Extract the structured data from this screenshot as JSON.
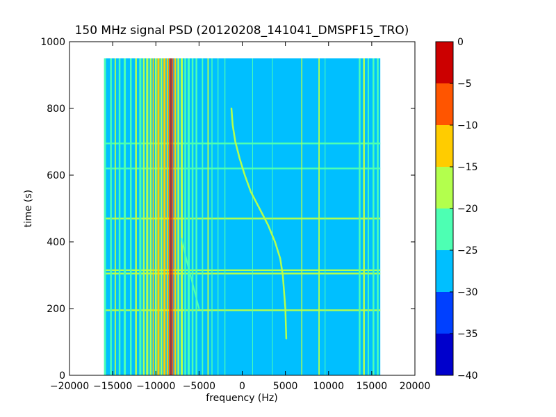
{
  "chart_data": {
    "type": "heatmap",
    "title": "150 MHz signal PSD (20120208_141041_DMSPF15_TRO)",
    "xlabel": "frequency (Hz)",
    "ylabel": "time (s)",
    "xlim": [
      -20000,
      20000
    ],
    "ylim": [
      0,
      1000
    ],
    "x_ticks": [
      {
        "value": -20000,
        "label": "−20000"
      },
      {
        "value": -15000,
        "label": "−15000"
      },
      {
        "value": -10000,
        "label": "−10000"
      },
      {
        "value": -5000,
        "label": "−5000"
      },
      {
        "value": 0,
        "label": "0"
      },
      {
        "value": 5000,
        "label": "5000"
      },
      {
        "value": 10000,
        "label": "10000"
      },
      {
        "value": 15000,
        "label": "15000"
      },
      {
        "value": 20000,
        "label": "20000"
      }
    ],
    "y_ticks": [
      {
        "value": 0,
        "label": "0"
      },
      {
        "value": 200,
        "label": "200"
      },
      {
        "value": 400,
        "label": "400"
      },
      {
        "value": 600,
        "label": "600"
      },
      {
        "value": 800,
        "label": "800"
      },
      {
        "value": 1000,
        "label": "1000"
      }
    ],
    "data_extent": {
      "freq": [
        -16000,
        16000
      ],
      "time": [
        0,
        950
      ]
    },
    "background_level": -27.5,
    "colorbar": {
      "min": -40,
      "max": 0,
      "levels": [
        {
          "from": -40,
          "to": -35,
          "color": "#0000cc"
        },
        {
          "from": -35,
          "to": -30,
          "color": "#0040ff"
        },
        {
          "from": -30,
          "to": -25,
          "color": "#00bfff"
        },
        {
          "from": -25,
          "to": -20,
          "color": "#4dffb3"
        },
        {
          "from": -20,
          "to": -15,
          "color": "#b3ff4d"
        },
        {
          "from": -15,
          "to": -10,
          "color": "#ffcc00"
        },
        {
          "from": -10,
          "to": -5,
          "color": "#ff5500"
        },
        {
          "from": -5,
          "to": 0,
          "color": "#cc0000"
        }
      ],
      "ticks": [
        {
          "value": 0,
          "label": "0"
        },
        {
          "value": -5,
          "label": "−5"
        },
        {
          "value": -10,
          "label": "−10"
        },
        {
          "value": -15,
          "label": "−15"
        },
        {
          "value": -20,
          "label": "−20"
        },
        {
          "value": -25,
          "label": "−25"
        },
        {
          "value": -30,
          "label": "−30"
        },
        {
          "value": -35,
          "label": "−35"
        },
        {
          "value": -40,
          "label": "−40"
        }
      ]
    },
    "vertical_bands": [
      {
        "freq": -15900,
        "width": 250,
        "level": -22.5
      },
      {
        "freq": -15200,
        "width": 200,
        "level": -22.5
      },
      {
        "freq": -14700,
        "width": 150,
        "level": -17.5
      },
      {
        "freq": -14200,
        "width": 200,
        "level": -22.5
      },
      {
        "freq": -13600,
        "width": 250,
        "level": -22.5
      },
      {
        "freq": -12900,
        "width": 200,
        "level": -22.5
      },
      {
        "freq": -12300,
        "width": 200,
        "level": -17.5
      },
      {
        "freq": -11800,
        "width": 250,
        "level": -22.5
      },
      {
        "freq": -11400,
        "width": 200,
        "level": -17.5
      },
      {
        "freq": -11000,
        "width": 250,
        "level": -17.5
      },
      {
        "freq": -10600,
        "width": 200,
        "level": -17.5
      },
      {
        "freq": -10300,
        "width": 150,
        "level": -12.5
      },
      {
        "freq": -10000,
        "width": 200,
        "level": -17.5
      },
      {
        "freq": -9700,
        "width": 250,
        "level": -12.5
      },
      {
        "freq": -9350,
        "width": 200,
        "level": -17.5
      },
      {
        "freq": -9000,
        "width": 250,
        "level": -12.5
      },
      {
        "freq": -8650,
        "width": 200,
        "level": -12.5
      },
      {
        "freq": -8420,
        "width": 150,
        "level": -7.5
      },
      {
        "freq": -8250,
        "width": 120,
        "level": -2.5
      },
      {
        "freq": -8050,
        "width": 150,
        "level": -7.5
      },
      {
        "freq": -7750,
        "width": 200,
        "level": -12.5
      },
      {
        "freq": -7400,
        "width": 200,
        "level": -17.5
      },
      {
        "freq": -7000,
        "width": 250,
        "level": -17.5
      },
      {
        "freq": -6600,
        "width": 200,
        "level": -22.5
      },
      {
        "freq": -6200,
        "width": 250,
        "level": -22.5
      },
      {
        "freq": -5750,
        "width": 200,
        "level": -22.5
      },
      {
        "freq": -5300,
        "width": 200,
        "level": -22.5
      },
      {
        "freq": -4600,
        "width": 150,
        "level": -22.5
      },
      {
        "freq": -3950,
        "width": 150,
        "level": -17.5
      },
      {
        "freq": -3500,
        "width": 120,
        "level": -22.5
      },
      {
        "freq": -2800,
        "width": 100,
        "level": -22.5
      },
      {
        "freq": -2000,
        "width": 100,
        "level": -22.5
      },
      {
        "freq": 1200,
        "width": 80,
        "level": -22.5
      },
      {
        "freq": 3500,
        "width": 80,
        "level": -22.5
      },
      {
        "freq": 6900,
        "width": 120,
        "level": -17.5
      },
      {
        "freq": 8900,
        "width": 150,
        "level": -17.5
      },
      {
        "freq": 9600,
        "width": 80,
        "level": -22.5
      },
      {
        "freq": 13600,
        "width": 200,
        "level": -22.5
      },
      {
        "freq": 14100,
        "width": 200,
        "level": -17.5
      },
      {
        "freq": 14600,
        "width": 150,
        "level": -22.5
      },
      {
        "freq": 15200,
        "width": 200,
        "level": -22.5
      },
      {
        "freq": 15700,
        "width": 200,
        "level": -22.5
      }
    ],
    "horizontal_lines": [
      {
        "time": 195,
        "level": -17.5
      },
      {
        "time": 305,
        "level": -17.5
      },
      {
        "time": 315,
        "level": -17.5
      },
      {
        "time": 470,
        "level": -17.5
      },
      {
        "time": 620,
        "level": -22.5
      },
      {
        "time": 695,
        "level": -22.5
      }
    ],
    "doppler_trace": {
      "level": -17.5,
      "points": [
        {
          "freq": 5100,
          "time": 110
        },
        {
          "freq": 5000,
          "time": 200
        },
        {
          "freq": 4700,
          "time": 300
        },
        {
          "freq": 4400,
          "time": 350
        },
        {
          "freq": 3800,
          "time": 400
        },
        {
          "freq": 3000,
          "time": 450
        },
        {
          "freq": 2000,
          "time": 500
        },
        {
          "freq": 1000,
          "time": 550
        },
        {
          "freq": 300,
          "time": 600
        },
        {
          "freq": -300,
          "time": 650
        },
        {
          "freq": -800,
          "time": 700
        },
        {
          "freq": -1100,
          "time": 750
        },
        {
          "freq": -1250,
          "time": 800
        }
      ]
    },
    "secondary_trace": {
      "level": -22.5,
      "points": [
        {
          "freq": -5000,
          "time": 200
        },
        {
          "freq": -5700,
          "time": 270
        },
        {
          "freq": -6400,
          "time": 340
        },
        {
          "freq": -7000,
          "time": 410
        }
      ]
    }
  }
}
